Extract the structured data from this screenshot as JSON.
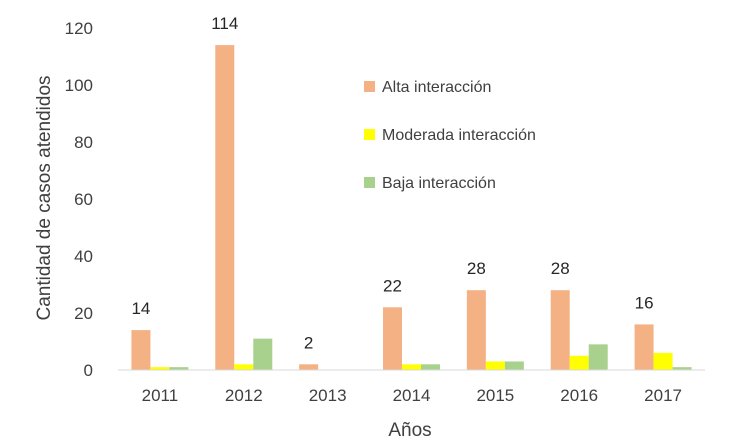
{
  "chart_data": {
    "type": "bar",
    "categories": [
      "2011",
      "2012",
      "2013",
      "2014",
      "2015",
      "2016",
      "2017"
    ],
    "series": [
      {
        "name": "Alta interacción",
        "color": "#F4B183",
        "values": [
          14,
          114,
          2,
          22,
          28,
          28,
          16
        ]
      },
      {
        "name": "Moderada interacción",
        "color": "#FFFF00",
        "values": [
          1,
          2,
          0,
          2,
          3,
          5,
          6
        ]
      },
      {
        "name": "Baja interacción",
        "color": "#A9D18E",
        "values": [
          1,
          11,
          0,
          2,
          3,
          9,
          1
        ]
      }
    ],
    "data_labels": {
      "series": "Alta interacción",
      "text": [
        "14",
        "114",
        "2",
        "22",
        "28",
        "28",
        "16"
      ]
    },
    "yticks": [
      "0",
      "20",
      "40",
      "60",
      "80",
      "100",
      "120"
    ],
    "ylim": [
      0,
      120
    ],
    "title": "",
    "xlabel": "Años",
    "ylabel": "Cantidad de casos atendidos",
    "grid": false,
    "legend_position": "top-right"
  }
}
